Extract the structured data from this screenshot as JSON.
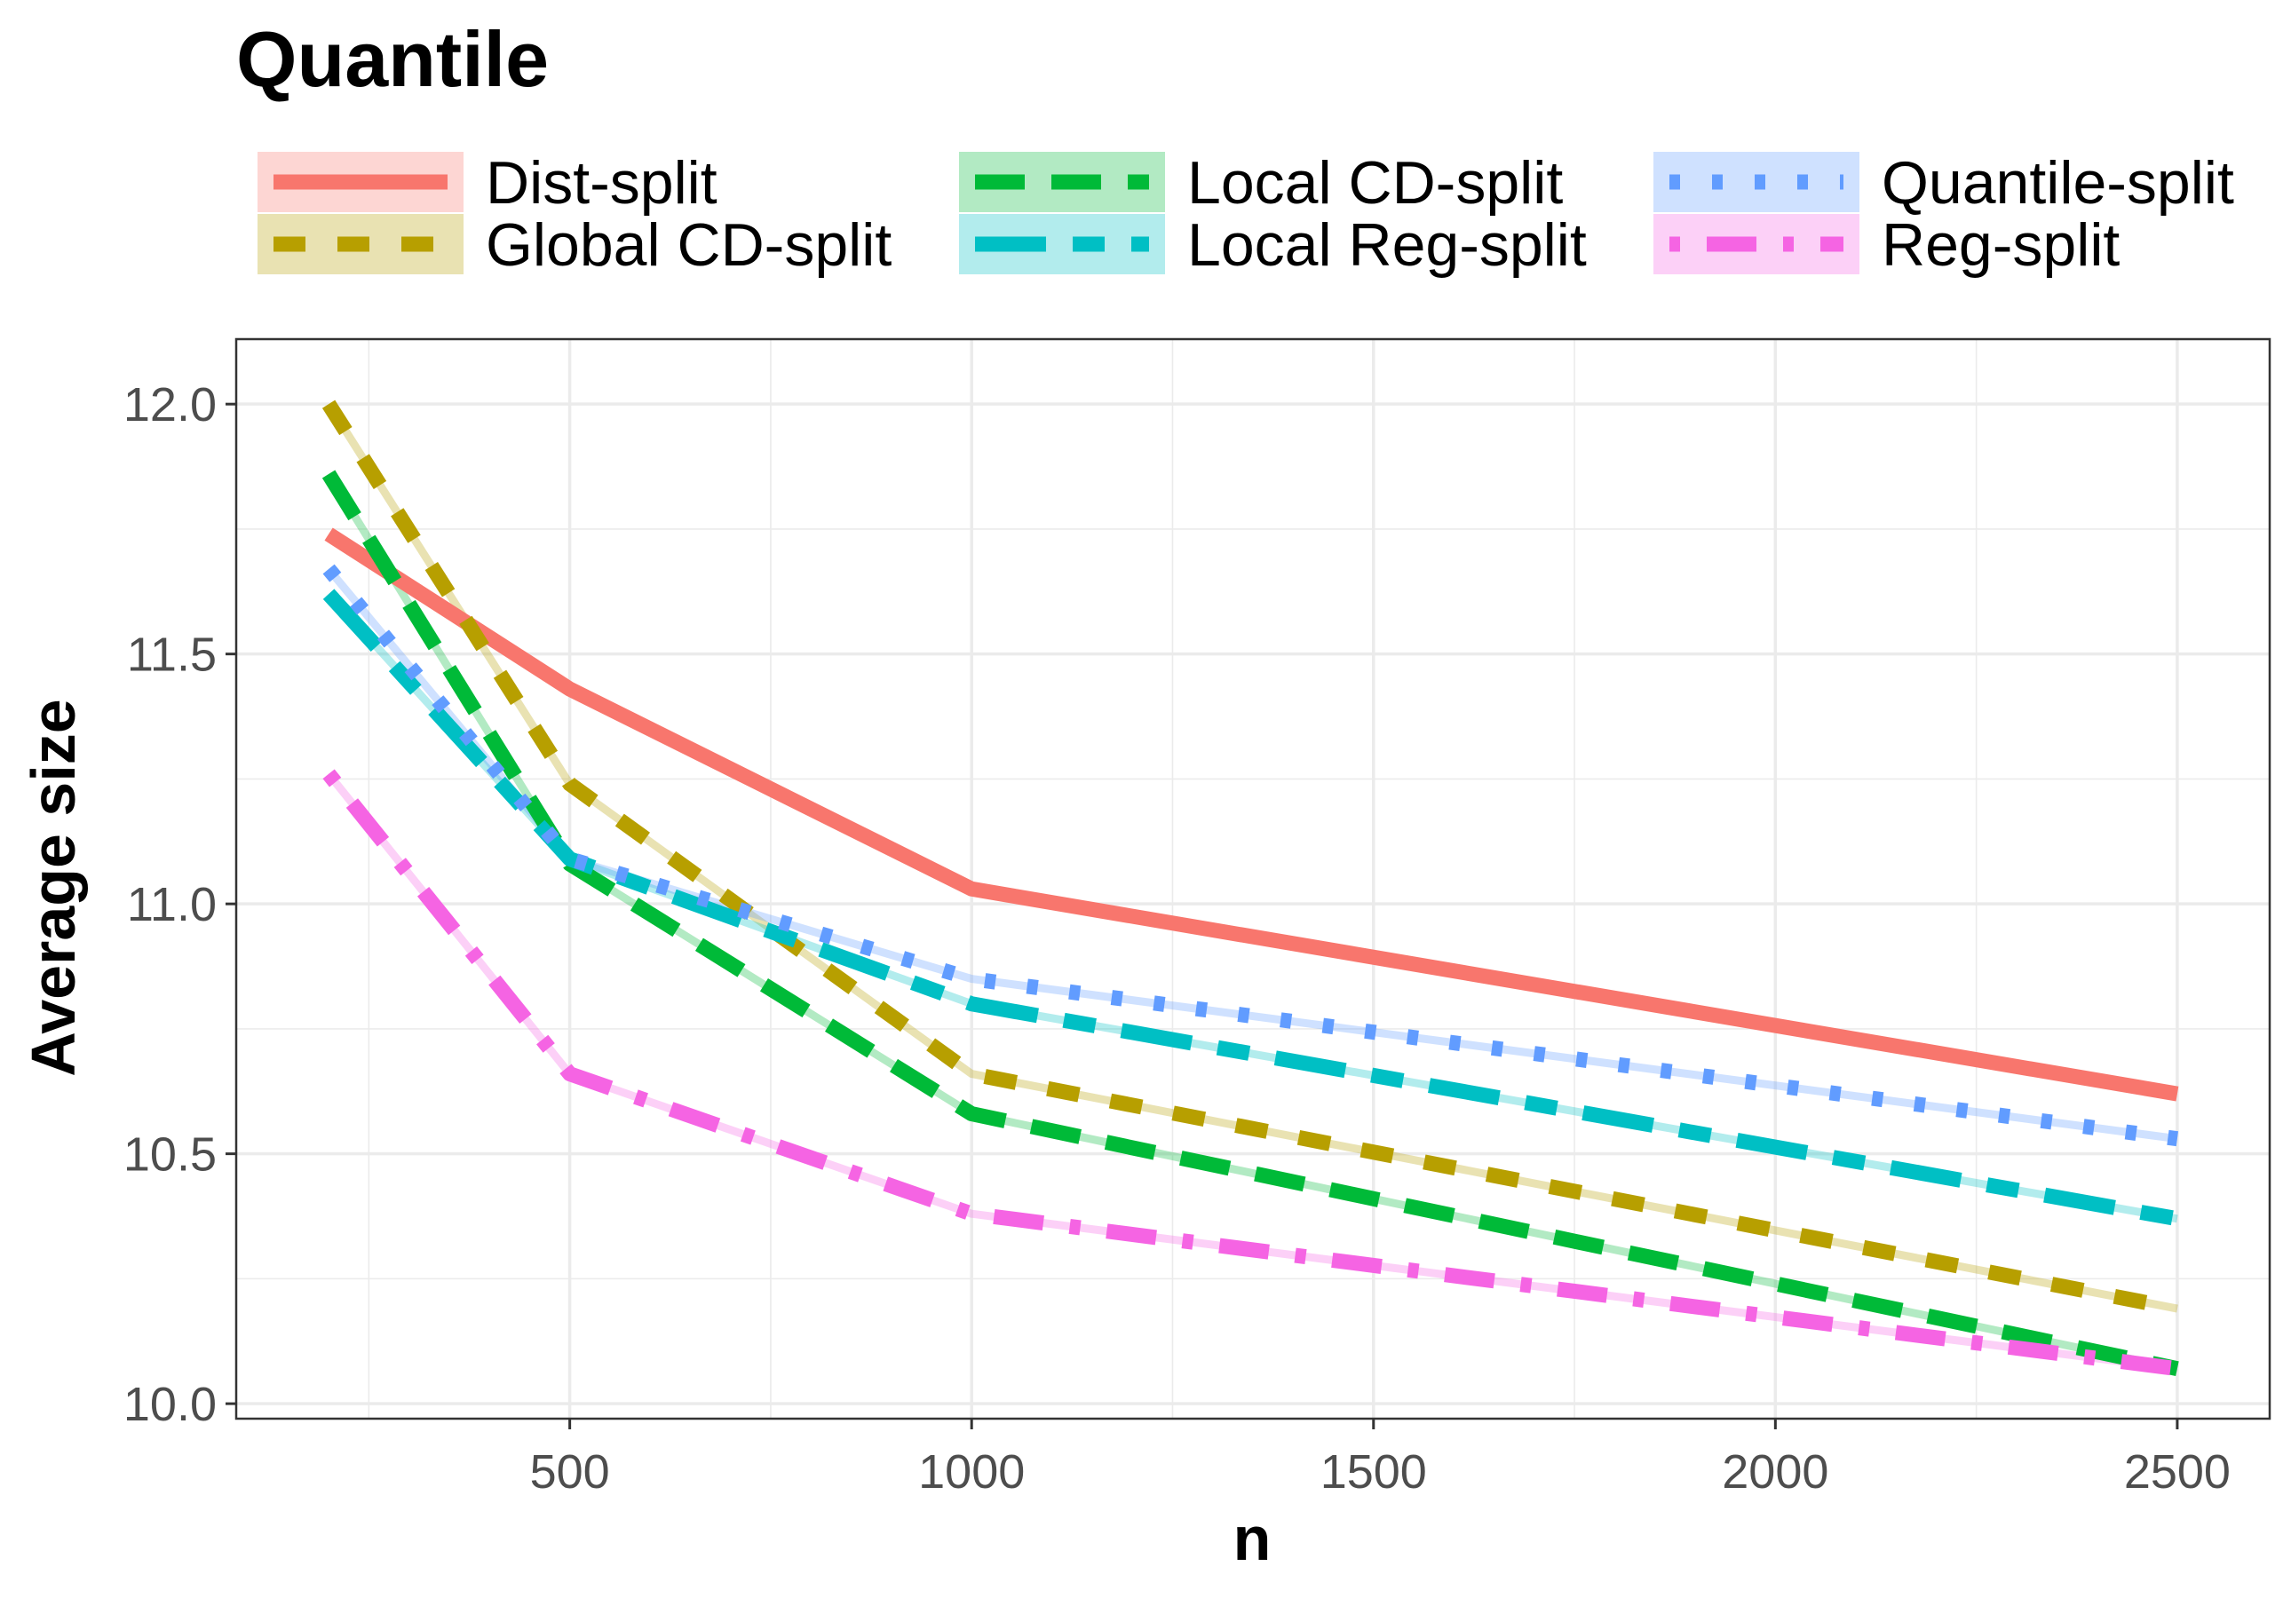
{
  "chart_data": {
    "type": "line",
    "title": "Quantile",
    "xlabel": "n",
    "ylabel": "Average size",
    "xlim": [
      85,
      2615
    ],
    "ylim": [
      9.97,
      12.13
    ],
    "x_ticks": [
      500,
      1000,
      1500,
      2000,
      2500
    ],
    "x_tick_labels": [
      "500",
      "1000",
      "1500",
      "2000",
      "2500"
    ],
    "y_ticks": [
      10.0,
      10.5,
      11.0,
      11.5,
      12.0
    ],
    "y_tick_labels": [
      "10.0",
      "10.5",
      "11.0",
      "11.5",
      "12.0"
    ],
    "grid": true,
    "legend_position": "top",
    "x": [
      200,
      500,
      1000,
      2500
    ],
    "series": [
      {
        "name": "Dist-split",
        "color": "#F8766D",
        "dash": "solid",
        "values": [
          11.74,
          11.43,
          11.03,
          10.62
        ]
      },
      {
        "name": "Global CD-split",
        "color": "#B79F00",
        "dash": "dashed",
        "values": [
          12.0,
          11.24,
          10.66,
          10.19
        ]
      },
      {
        "name": "Local CD-split",
        "color": "#00BA38",
        "dash": "longdash",
        "values": [
          11.86,
          11.08,
          10.58,
          10.07
        ]
      },
      {
        "name": "Local Reg-split",
        "color": "#00BFC4",
        "dash": "twodash",
        "values": [
          11.62,
          11.09,
          10.8,
          10.37
        ]
      },
      {
        "name": "Quantile-split",
        "color": "#619CFF",
        "dash": "dotted",
        "values": [
          11.67,
          11.09,
          10.85,
          10.53
        ]
      },
      {
        "name": "Reg-split",
        "color": "#F564E3",
        "dash": "dotdash",
        "values": [
          11.26,
          10.66,
          10.38,
          10.07
        ]
      }
    ]
  }
}
